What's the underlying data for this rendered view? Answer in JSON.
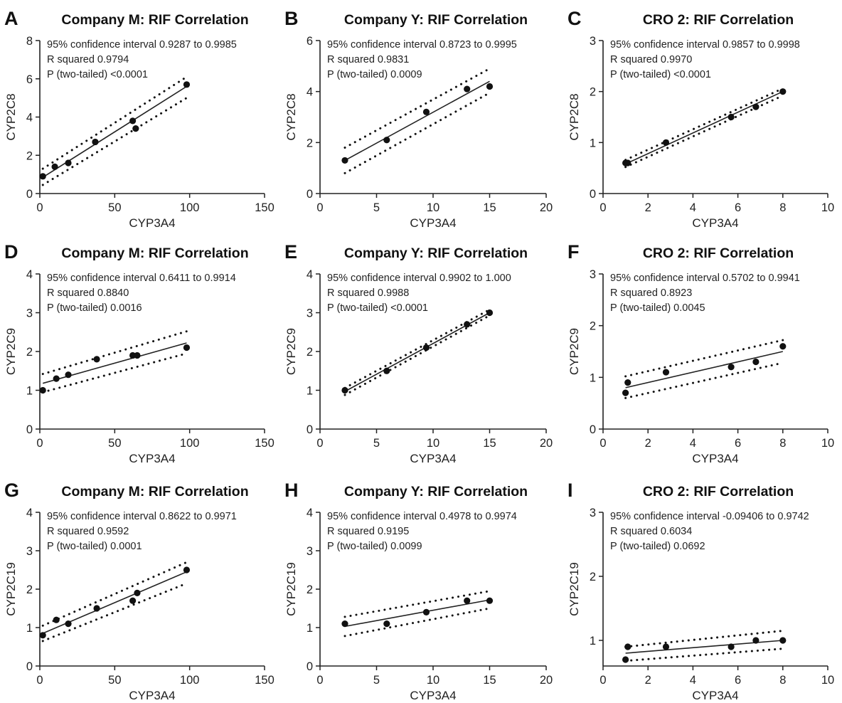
{
  "chart_data": [
    {
      "panel_letter": "A",
      "type": "scatter",
      "title": "Company M: RIF Correlation",
      "xlabel": "CYP3A4",
      "ylabel": "CYP2C8",
      "xlim": [
        0,
        150
      ],
      "ylim": [
        0,
        8
      ],
      "xticks": [
        0,
        50,
        100,
        150
      ],
      "yticks": [
        0,
        2,
        4,
        6,
        8
      ],
      "stats": [
        "95% confidence interval 0.9287 to 0.9985",
        "R squared 0.9794",
        "P (two-tailed) <0.0001"
      ],
      "points": [
        {
          "x": 2,
          "y": 0.9
        },
        {
          "x": 10,
          "y": 1.4
        },
        {
          "x": 19,
          "y": 1.6
        },
        {
          "x": 37,
          "y": 2.7
        },
        {
          "x": 62,
          "y": 3.8
        },
        {
          "x": 64,
          "y": 3.4
        },
        {
          "x": 98,
          "y": 5.7
        }
      ],
      "fit": {
        "x": [
          2,
          98
        ],
        "y": [
          0.85,
          5.6
        ]
      },
      "ci_lower": {
        "x": [
          2,
          98
        ],
        "y": [
          0.45,
          5.0
        ]
      },
      "ci_upper": {
        "x": [
          2,
          98
        ],
        "y": [
          1.3,
          6.1
        ]
      }
    },
    {
      "panel_letter": "B",
      "type": "scatter",
      "title": "Company Y: RIF Correlation",
      "xlabel": "CYP3A4",
      "ylabel": "CYP2C8",
      "xlim": [
        0,
        20
      ],
      "ylim": [
        0,
        6
      ],
      "xticks": [
        0,
        5,
        10,
        15,
        20
      ],
      "yticks": [
        0,
        2,
        4,
        6
      ],
      "stats": [
        "95% confidence interval 0.8723 to 0.9995",
        "R squared 0.9831",
        "P (two-tailed) 0.0009"
      ],
      "points": [
        {
          "x": 2.2,
          "y": 1.3
        },
        {
          "x": 5.9,
          "y": 2.1
        },
        {
          "x": 9.4,
          "y": 3.2
        },
        {
          "x": 13.0,
          "y": 4.1
        },
        {
          "x": 15.0,
          "y": 4.2
        }
      ],
      "fit": {
        "x": [
          2.2,
          15
        ],
        "y": [
          1.3,
          4.4
        ]
      },
      "ci_lower": {
        "x": [
          2.2,
          15
        ],
        "y": [
          0.8,
          3.95
        ]
      },
      "ci_upper": {
        "x": [
          2.2,
          15
        ],
        "y": [
          1.8,
          4.9
        ]
      }
    },
    {
      "panel_letter": "C",
      "type": "scatter",
      "title": "CRO 2: RIF Correlation",
      "xlabel": "CYP3A4",
      "ylabel": "CYP2C8",
      "xlim": [
        0,
        10
      ],
      "ylim": [
        0,
        3
      ],
      "xticks": [
        0,
        2,
        4,
        6,
        8,
        10
      ],
      "yticks": [
        0,
        1,
        2,
        3
      ],
      "stats": [
        "95% confidence interval 0.9857 to 0.9998",
        "R squared 0.9970",
        "P (two-tailed) <0.0001"
      ],
      "points": [
        {
          "x": 1.0,
          "y": 0.6
        },
        {
          "x": 1.1,
          "y": 0.6
        },
        {
          "x": 2.8,
          "y": 1.0
        },
        {
          "x": 5.7,
          "y": 1.5
        },
        {
          "x": 6.8,
          "y": 1.7
        },
        {
          "x": 8.0,
          "y": 2.0
        }
      ],
      "fit": {
        "x": [
          1.0,
          8.0
        ],
        "y": [
          0.58,
          2.0
        ]
      },
      "ci_lower": {
        "x": [
          1.0,
          8.0
        ],
        "y": [
          0.52,
          1.92
        ]
      },
      "ci_upper": {
        "x": [
          1.0,
          8.0
        ],
        "y": [
          0.66,
          2.06
        ]
      }
    },
    {
      "panel_letter": "D",
      "type": "scatter",
      "title": "Company M: RIF Correlation",
      "xlabel": "CYP3A4",
      "ylabel": "CYP2C9",
      "xlim": [
        0,
        150
      ],
      "ylim": [
        0,
        4
      ],
      "xticks": [
        0,
        50,
        100,
        150
      ],
      "yticks": [
        0,
        1,
        2,
        3,
        4
      ],
      "stats": [
        "95% confidence interval 0.6411 to 0.9914",
        "R squared 0.8840",
        "P (two-tailed) 0.0016"
      ],
      "points": [
        {
          "x": 2,
          "y": 1.0
        },
        {
          "x": 11,
          "y": 1.3
        },
        {
          "x": 19,
          "y": 1.4
        },
        {
          "x": 38,
          "y": 1.8
        },
        {
          "x": 62,
          "y": 1.9
        },
        {
          "x": 65,
          "y": 1.9
        },
        {
          "x": 98,
          "y": 2.1
        }
      ],
      "fit": {
        "x": [
          2,
          98
        ],
        "y": [
          1.18,
          2.22
        ]
      },
      "ci_lower": {
        "x": [
          2,
          98
        ],
        "y": [
          0.95,
          1.95
        ]
      },
      "ci_upper": {
        "x": [
          2,
          98
        ],
        "y": [
          1.42,
          2.52
        ]
      }
    },
    {
      "panel_letter": "E",
      "type": "scatter",
      "title": "Company Y: RIF Correlation",
      "xlabel": "CYP3A4",
      "ylabel": "CYP2C9",
      "xlim": [
        0,
        20
      ],
      "ylim": [
        0,
        4
      ],
      "xticks": [
        0,
        5,
        10,
        15,
        20
      ],
      "yticks": [
        0,
        1,
        2,
        3,
        4
      ],
      "stats": [
        "95% confidence interval 0.9902 to 1.000",
        "R squared 0.9988",
        "P (two-tailed) <0.0001"
      ],
      "points": [
        {
          "x": 2.2,
          "y": 1.0
        },
        {
          "x": 5.9,
          "y": 1.5
        },
        {
          "x": 9.4,
          "y": 2.1
        },
        {
          "x": 13.0,
          "y": 2.7
        },
        {
          "x": 15.0,
          "y": 3.0
        }
      ],
      "fit": {
        "x": [
          2.2,
          15
        ],
        "y": [
          0.97,
          3.0
        ]
      },
      "ci_lower": {
        "x": [
          2.2,
          15
        ],
        "y": [
          0.88,
          2.93
        ]
      },
      "ci_upper": {
        "x": [
          2.2,
          15
        ],
        "y": [
          1.06,
          3.08
        ]
      }
    },
    {
      "panel_letter": "F",
      "type": "scatter",
      "title": "CRO 2: RIF Correlation",
      "xlabel": "CYP3A4",
      "ylabel": "CYP2C9",
      "xlim": [
        0,
        10
      ],
      "ylim": [
        0,
        3
      ],
      "xticks": [
        0,
        2,
        4,
        6,
        8,
        10
      ],
      "yticks": [
        0,
        1,
        2,
        3
      ],
      "stats": [
        "95% confidence interval 0.5702 to 0.9941",
        "R squared 0.8923",
        "P (two-tailed) 0.0045"
      ],
      "points": [
        {
          "x": 1.0,
          "y": 0.7
        },
        {
          "x": 1.1,
          "y": 0.9
        },
        {
          "x": 2.8,
          "y": 1.1
        },
        {
          "x": 5.7,
          "y": 1.2
        },
        {
          "x": 6.8,
          "y": 1.3
        },
        {
          "x": 8.0,
          "y": 1.6
        }
      ],
      "fit": {
        "x": [
          1.0,
          8.0
        ],
        "y": [
          0.8,
          1.5
        ]
      },
      "ci_lower": {
        "x": [
          1.0,
          8.0
        ],
        "y": [
          0.6,
          1.28
        ]
      },
      "ci_upper": {
        "x": [
          1.0,
          8.0
        ],
        "y": [
          1.02,
          1.72
        ]
      }
    },
    {
      "panel_letter": "G",
      "type": "scatter",
      "title": "Company M: RIF Correlation",
      "xlabel": "CYP3A4",
      "ylabel": "CYP2C19",
      "xlim": [
        0,
        150
      ],
      "ylim": [
        0,
        4
      ],
      "xticks": [
        0,
        50,
        100,
        150
      ],
      "yticks": [
        0,
        1,
        2,
        3,
        4
      ],
      "stats": [
        "95% confidence interval 0.8622 to 0.9971",
        "R squared 0.9592",
        "P (two-tailed) 0.0001"
      ],
      "points": [
        {
          "x": 2,
          "y": 0.8
        },
        {
          "x": 11,
          "y": 1.2
        },
        {
          "x": 19,
          "y": 1.1
        },
        {
          "x": 38,
          "y": 1.5
        },
        {
          "x": 62,
          "y": 1.7
        },
        {
          "x": 65,
          "y": 1.9
        },
        {
          "x": 98,
          "y": 2.5
        }
      ],
      "fit": {
        "x": [
          2,
          98
        ],
        "y": [
          0.85,
          2.45
        ]
      },
      "ci_lower": {
        "x": [
          2,
          98
        ],
        "y": [
          0.65,
          2.15
        ]
      },
      "ci_upper": {
        "x": [
          2,
          98
        ],
        "y": [
          1.05,
          2.7
        ]
      }
    },
    {
      "panel_letter": "H",
      "type": "scatter",
      "title": "Company Y: RIF Correlation",
      "xlabel": "CYP3A4",
      "ylabel": "CYP2C19",
      "xlim": [
        0,
        20
      ],
      "ylim": [
        0,
        4
      ],
      "xticks": [
        0,
        5,
        10,
        15,
        20
      ],
      "yticks": [
        0,
        1,
        2,
        3,
        4
      ],
      "stats": [
        "95% confidence interval 0.4978 to 0.9974",
        "R squared 0.9195",
        "P (two-tailed) 0.0099"
      ],
      "points": [
        {
          "x": 2.2,
          "y": 1.1
        },
        {
          "x": 5.9,
          "y": 1.1
        },
        {
          "x": 9.4,
          "y": 1.4
        },
        {
          "x": 13.0,
          "y": 1.7
        },
        {
          "x": 15.0,
          "y": 1.7
        }
      ],
      "fit": {
        "x": [
          2.2,
          15
        ],
        "y": [
          1.03,
          1.72
        ]
      },
      "ci_lower": {
        "x": [
          2.2,
          15
        ],
        "y": [
          0.78,
          1.5
        ]
      },
      "ci_upper": {
        "x": [
          2.2,
          15
        ],
        "y": [
          1.28,
          1.95
        ]
      }
    },
    {
      "panel_letter": "I",
      "type": "scatter",
      "title": "CRO 2: RIF Correlation",
      "xlabel": "CYP3A4",
      "ylabel": "CYP2C19",
      "xlim": [
        0,
        10
      ],
      "ylim": [
        0.6,
        3
      ],
      "xticks": [
        0,
        2,
        4,
        6,
        8,
        10
      ],
      "yticks": [
        1,
        2,
        3
      ],
      "stats": [
        "95% confidence interval -0.09406 to 0.9742",
        "R squared 0.6034",
        "P (two-tailed) 0.0692"
      ],
      "points": [
        {
          "x": 1.0,
          "y": 0.7
        },
        {
          "x": 1.1,
          "y": 0.9
        },
        {
          "x": 2.8,
          "y": 0.9
        },
        {
          "x": 5.7,
          "y": 0.9
        },
        {
          "x": 6.8,
          "y": 1.0
        },
        {
          "x": 8.0,
          "y": 1.0
        }
      ],
      "fit": {
        "x": [
          1.0,
          8.0
        ],
        "y": [
          0.8,
          1.0
        ]
      },
      "ci_lower": {
        "x": [
          1.0,
          8.0
        ],
        "y": [
          0.68,
          0.87
        ]
      },
      "ci_upper": {
        "x": [
          1.0,
          8.0
        ],
        "y": [
          0.9,
          1.15
        ]
      }
    }
  ]
}
